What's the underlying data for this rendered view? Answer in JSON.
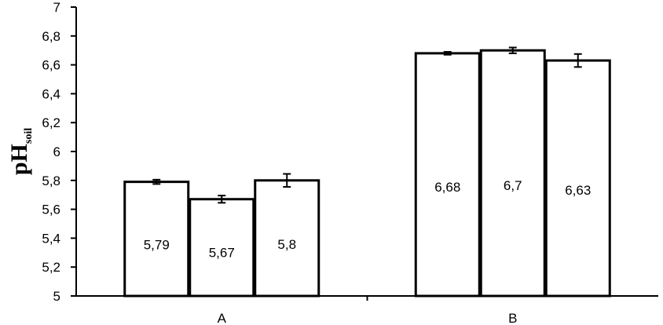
{
  "chart_data": {
    "type": "bar",
    "title": "",
    "xlabel": "",
    "ylabel": "pH",
    "ylabel_subscript": "soil",
    "ylim": [
      5,
      7
    ],
    "yticks": [
      "5",
      "5,2",
      "5,4",
      "5,6",
      "5,8",
      "6",
      "6,2",
      "6,4",
      "6,6",
      "6,8",
      "7"
    ],
    "categories": [
      "A",
      "B"
    ],
    "grid": false,
    "legend": "none",
    "bar_fill": "#ffffff",
    "bar_stroke": "#000000",
    "groups": [
      {
        "category": "A",
        "bars": [
          {
            "value": 5.79,
            "label": "5,79",
            "error": 0.015
          },
          {
            "value": 5.67,
            "label": "5,67",
            "error": 0.025
          },
          {
            "value": 5.8,
            "label": "5,8",
            "error": 0.045
          }
        ]
      },
      {
        "category": "B",
        "bars": [
          {
            "value": 6.68,
            "label": "6,68",
            "error": 0.01
          },
          {
            "value": 6.7,
            "label": "6,7",
            "error": 0.02
          },
          {
            "value": 6.63,
            "label": "6,63",
            "error": 0.045
          }
        ]
      }
    ]
  }
}
